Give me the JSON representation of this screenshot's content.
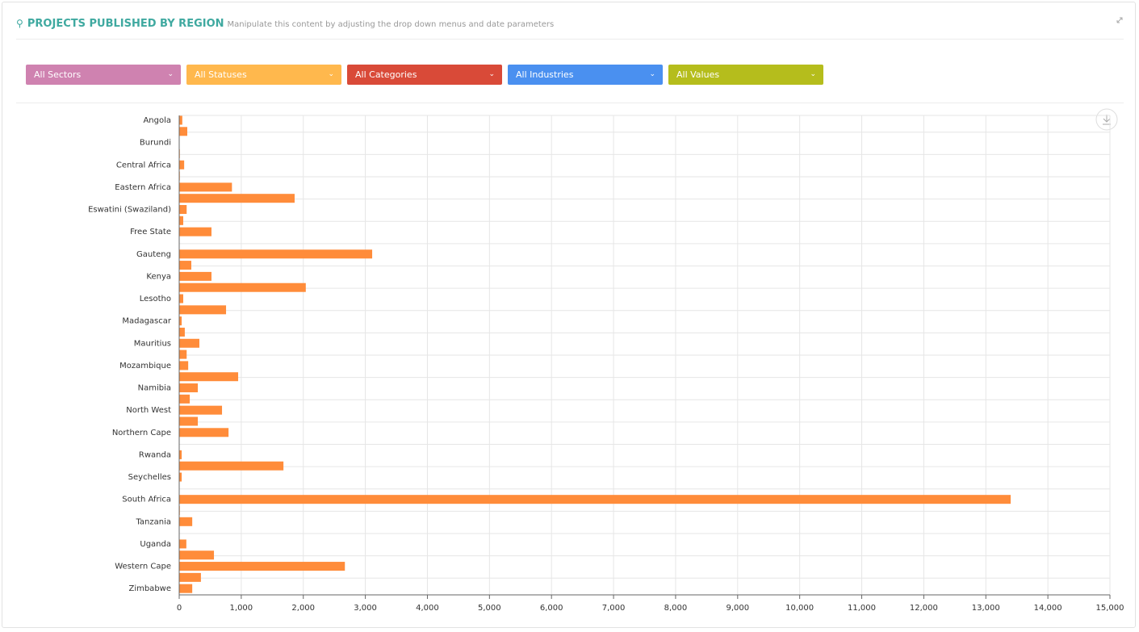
{
  "header": {
    "title": "PROJECTS PUBLISHED BY REGION",
    "subtitle": "Manipulate this content by adjusting the drop down menus and date parameters"
  },
  "filters": [
    {
      "label": "All Sectors",
      "color": "#cf82b0"
    },
    {
      "label": "All Statuses",
      "color": "#ffb84d"
    },
    {
      "label": "All Categories",
      "color": "#d94a38"
    },
    {
      "label": "All Industries",
      "color": "#4a90f0"
    },
    {
      "label": "All Values",
      "color": "#b5bd1c"
    }
  ],
  "chart_data": {
    "type": "hbar",
    "color": "#ff8c3a",
    "grid": true,
    "categories": [
      "Angola",
      null,
      "Burundi",
      null,
      "Central Africa",
      null,
      "Eastern Africa",
      null,
      "Eswatini (Swaziland)",
      null,
      "Free State",
      null,
      "Gauteng",
      null,
      "Kenya",
      null,
      "Lesotho",
      null,
      "Madagascar",
      null,
      "Mauritius",
      null,
      "Mozambique",
      null,
      "Namibia",
      null,
      "North West",
      null,
      "Northern Cape",
      null,
      "Rwanda",
      null,
      "Seychelles",
      null,
      "South Africa",
      null,
      "Tanzania",
      null,
      "Uganda",
      null,
      "Western Cape",
      null,
      "Zimbabwe"
    ],
    "values": [
      50,
      130,
      5,
      10,
      80,
      10,
      850,
      1860,
      120,
      65,
      520,
      5,
      3110,
      195,
      520,
      2040,
      65,
      755,
      40,
      90,
      325,
      120,
      145,
      950,
      300,
      170,
      690,
      300,
      795,
      5,
      40,
      1680,
      40,
      5,
      13400,
      10,
      210,
      5,
      115,
      560,
      2670,
      350,
      210
    ],
    "xlim": [
      0,
      15000
    ],
    "xticks": [
      0,
      {
        "value": 1000,
        "label": "1,000"
      },
      {
        "value": 2000,
        "label": "2,000"
      },
      {
        "value": 3000,
        "label": "3,000"
      },
      {
        "value": 4000,
        "label": "4,000"
      },
      {
        "value": 5000,
        "label": "5,000"
      },
      {
        "value": 6000,
        "label": "6,000"
      },
      {
        "value": 7000,
        "label": "7,000"
      },
      {
        "value": 8000,
        "label": "8,000"
      },
      {
        "value": 9000,
        "label": "9,000"
      },
      {
        "value": 10000,
        "label": "10,000"
      },
      {
        "value": 11000,
        "label": "11,000"
      },
      {
        "value": 12000,
        "label": "12,000"
      },
      {
        "value": 13000,
        "label": "13,000"
      },
      {
        "value": 14000,
        "label": "14,000"
      },
      {
        "value": 15000,
        "label": "15,000"
      }
    ]
  }
}
